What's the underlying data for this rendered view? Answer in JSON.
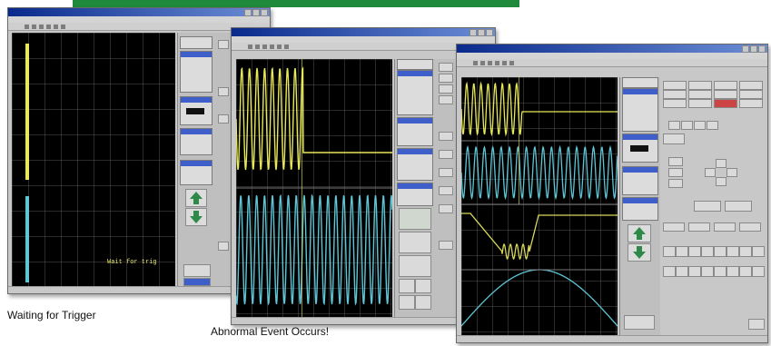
{
  "colors": {
    "banner": "#1f8a3c",
    "trace_yellow": "#e8e85a",
    "trace_cyan": "#5ec6d6",
    "title_blue": "#0a2a8c"
  },
  "icons": {
    "arrow_up": "up-arrow-icon",
    "arrow_down": "down-arrow-icon"
  },
  "captions": {
    "waiting": "Waiting for Trigger",
    "abnormal": "Abnormal Event Occurs!"
  },
  "screen1": {
    "scope_message": "Wait for trig"
  }
}
